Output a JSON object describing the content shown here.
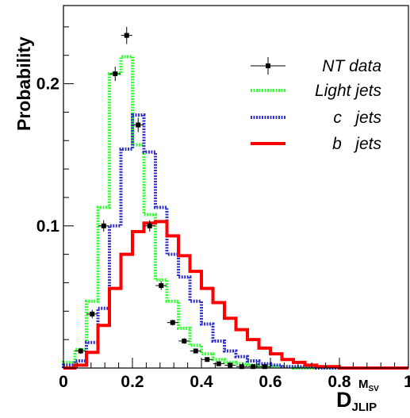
{
  "chart_data": {
    "type": "step-histogram",
    "ylabel": "Probability",
    "xlabel": {
      "main": "D",
      "sub": "JLIP",
      "sup": "M",
      "sup_sub": "SV"
    },
    "xlim": [
      0,
      1
    ],
    "ylim": [
      0,
      0.255
    ],
    "x_ticks": [
      {
        "value": 0,
        "label": "0"
      },
      {
        "value": 0.2,
        "label": "0.2"
      },
      {
        "value": 0.4,
        "label": "0.4"
      },
      {
        "value": 0.6,
        "label": "0.6"
      },
      {
        "value": 0.8,
        "label": "0.8"
      },
      {
        "value": 1,
        "label": "1"
      }
    ],
    "y_ticks": [
      {
        "value": 0.1,
        "label": "0.1"
      },
      {
        "value": 0.2,
        "label": "0.2"
      }
    ],
    "bin_edges": [
      0,
      0.033333,
      0.066667,
      0.1,
      0.133333,
      0.166667,
      0.2,
      0.233333,
      0.266667,
      0.3,
      0.333333,
      0.366667,
      0.4,
      0.433333,
      0.466667,
      0.5,
      0.533333,
      0.566667,
      0.6,
      0.633333,
      0.666667,
      0.7,
      0.733333,
      0.766667,
      0.8,
      0.833333,
      0.866667,
      0.9,
      0.933333,
      0.966667,
      1
    ],
    "series": [
      {
        "name": "Light jets",
        "style": "histogram",
        "color": "#33ff33",
        "dash": "dotted",
        "values": [
          0.004,
          0.013,
          0.047,
          0.113,
          0.207,
          0.219,
          0.157,
          0.108,
          0.062,
          0.047,
          0.028,
          0.016,
          0.01,
          0.006,
          0.004,
          0.003,
          0.002,
          0.001,
          0.001,
          0.001,
          0,
          0,
          0,
          0,
          0,
          0,
          0,
          0,
          0,
          0
        ]
      },
      {
        "name": "c jets",
        "style": "histogram",
        "color": "#3333cc",
        "dash": "dotted",
        "values": [
          0.002,
          0.005,
          0.018,
          0.042,
          0.1,
          0.154,
          0.178,
          0.152,
          0.113,
          0.08,
          0.064,
          0.047,
          0.031,
          0.019,
          0.012,
          0.008,
          0.005,
          0.003,
          0.002,
          0.001,
          0.001,
          0.001,
          0,
          0,
          0,
          0,
          0,
          0,
          0,
          0
        ]
      },
      {
        "name": "b jets",
        "style": "histogram",
        "color": "#ff0000",
        "dash": "solid",
        "values": [
          0,
          0.002,
          0.011,
          0.03,
          0.056,
          0.08,
          0.096,
          0.102,
          0.103,
          0.093,
          0.079,
          0.068,
          0.056,
          0.046,
          0.035,
          0.027,
          0.02,
          0.014,
          0.01,
          0.006,
          0.004,
          0.002,
          0.001,
          0.001,
          0,
          0,
          0,
          0,
          0,
          0
        ]
      },
      {
        "name": "NT data",
        "style": "points",
        "color": "#000000",
        "x": [
          0.05,
          0.083333,
          0.116667,
          0.15,
          0.183333,
          0.216667,
          0.25,
          0.283333,
          0.316667,
          0.35,
          0.383333,
          0.416667,
          0.45,
          0.483333,
          0.516667,
          0.55,
          0.583333
        ],
        "y": [
          0.012,
          0.038,
          0.1,
          0.207,
          0.234,
          0.171,
          0.1,
          0.058,
          0.032,
          0.019,
          0.012,
          0.006,
          0.003,
          0.002,
          0.001,
          0.001,
          0.001
        ],
        "yerr": [
          0.002,
          0.003,
          0.004,
          0.005,
          0.006,
          0.005,
          0.004,
          0.003,
          0.002,
          0.002,
          0.001,
          0.001,
          0.001,
          0.001,
          0.001,
          0.001,
          0.001
        ]
      }
    ],
    "legend": {
      "placement": "top-right",
      "entries": [
        {
          "label": "NT data",
          "series": "NT data"
        },
        {
          "label": "Light jets",
          "series": "Light jets"
        },
        {
          "label": "c   jets",
          "series": "c jets"
        },
        {
          "label": "b   jets",
          "series": "b jets"
        }
      ]
    }
  }
}
